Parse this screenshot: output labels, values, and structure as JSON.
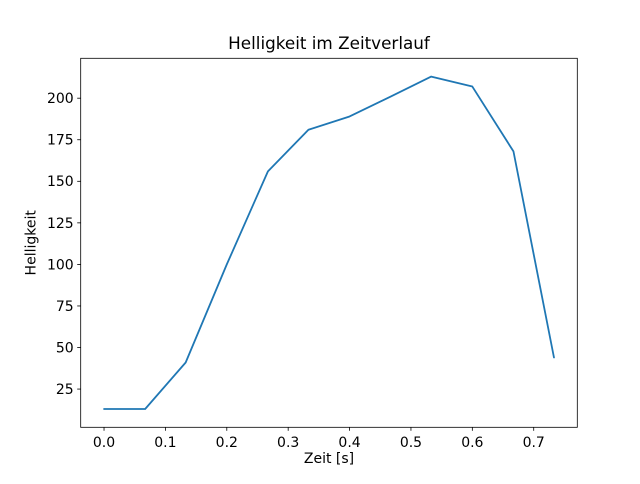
{
  "figure": {
    "background_color": "#ffffff",
    "text_color": "#000000",
    "spine_color": "#000000"
  },
  "chart_data": {
    "type": "line",
    "title": "Helligkeit im Zeitverlauf",
    "xlabel": "Zeit [s]",
    "ylabel": "Helligkeit",
    "x": [
      0.0,
      0.067,
      0.133,
      0.2,
      0.267,
      0.333,
      0.4,
      0.467,
      0.533,
      0.6,
      0.667,
      0.733
    ],
    "values": [
      13,
      13,
      41,
      100,
      156,
      181,
      189,
      201,
      213,
      207,
      168,
      44
    ],
    "series_name": "Helligkeit",
    "line_color": "#1f77b4",
    "xticks": [
      0.0,
      0.1,
      0.2,
      0.3,
      0.4,
      0.5,
      0.6,
      0.7
    ],
    "xtick_labels": [
      "0.0",
      "0.1",
      "0.2",
      "0.3",
      "0.4",
      "0.5",
      "0.6",
      "0.7"
    ],
    "yticks": [
      25,
      50,
      75,
      100,
      125,
      150,
      175,
      200
    ],
    "ytick_labels": [
      "25",
      "50",
      "75",
      "100",
      "125",
      "150",
      "175",
      "200"
    ],
    "xlim": [
      -0.038,
      0.771
    ],
    "ylim": [
      2,
      224
    ],
    "grid": false,
    "legend": null
  }
}
